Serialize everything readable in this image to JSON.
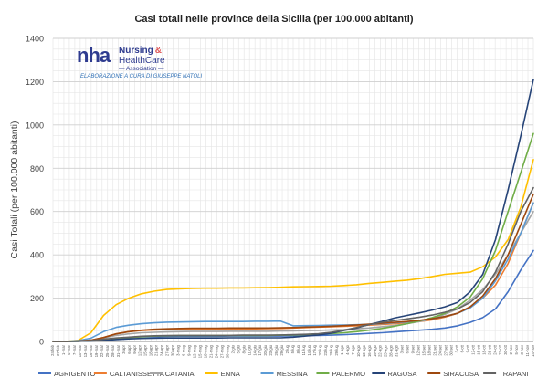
{
  "chart_data": {
    "type": "line",
    "title": "Casi totali nelle province della Sicilia (per 100.000 abitanti)",
    "ylabel": "Casi Totali (per 100.000 abitanti)",
    "xlabel": "",
    "ylim": [
      0,
      1400
    ],
    "yticks": [
      "0",
      "200",
      "400",
      "600",
      "800",
      "1000",
      "1200",
      "1400"
    ],
    "grid": true,
    "legend_position": "bottom",
    "x": [
      "24-feb",
      "2-mar",
      "9-mar",
      "16-mar",
      "23-mar",
      "30-mar",
      "6-apr",
      "13-apr",
      "20-apr",
      "27-apr",
      "4-mag",
      "11-mag",
      "18-mag",
      "25-mag",
      "1-giu",
      "8-giu",
      "15-giu",
      "22-giu",
      "29-giu",
      "6-lug",
      "13-lug",
      "20-lug",
      "27-lug",
      "3-ago",
      "10-ago",
      "17-ago",
      "24-ago",
      "31-ago",
      "7-set",
      "14-set",
      "21-set",
      "28-set",
      "5-ott",
      "12-ott",
      "19-ott",
      "26-ott",
      "2-nov",
      "9-nov",
      "14-nov"
    ],
    "xtick_labels": [
      "24-feb",
      "27-feb",
      "1-mar",
      "4-mar",
      "7-mar",
      "10-mar",
      "13-mar",
      "16-mar",
      "19-mar",
      "22-mar",
      "25-mar",
      "28-mar",
      "31-mar",
      "3-apr",
      "6-apr",
      "9-apr",
      "12-apr",
      "15-apr",
      "18-apr",
      "21-apr",
      "24-apr",
      "27-apr",
      "30-apr",
      "3-mag",
      "6-mag",
      "9-mag",
      "12-mag",
      "15-mag",
      "18-mag",
      "21-mag",
      "24-mag",
      "27-mag",
      "30-mag",
      "2-giu",
      "5-giu",
      "8-giu",
      "11-giu",
      "14-giu",
      "17-giu",
      "20-giu",
      "23-giu",
      "26-giu",
      "29-giu",
      "2-lug",
      "5-lug",
      "8-lug",
      "11-lug",
      "14-lug",
      "17-lug",
      "20-lug",
      "23-lug",
      "26-lug",
      "29-lug",
      "1-ago",
      "4-ago",
      "7-ago",
      "10-ago",
      "13-ago",
      "16-ago",
      "19-ago",
      "22-ago",
      "25-ago",
      "28-ago",
      "31-ago",
      "3-set",
      "6-set",
      "9-set",
      "12-set",
      "15-set",
      "18-set",
      "21-set",
      "24-set",
      "27-set",
      "30-set",
      "3-ott",
      "6-ott",
      "9-ott",
      "12-ott",
      "15-ott",
      "18-ott",
      "21-ott",
      "24-ott",
      "27-ott",
      "30-ott",
      "2-nov",
      "5-nov",
      "8-nov",
      "11-nov",
      "14-nov"
    ],
    "series": [
      {
        "name": "AGRIGENTO",
        "color": "#4472c4",
        "values": [
          0,
          0,
          1,
          3,
          8,
          14,
          18,
          21,
          22,
          23,
          24,
          24,
          24,
          24,
          25,
          25,
          25,
          25,
          25,
          26,
          27,
          28,
          29,
          31,
          34,
          37,
          40,
          44,
          48,
          52,
          56,
          62,
          72,
          88,
          110,
          150,
          230,
          330,
          420
        ]
      },
      {
        "name": "CALTANISSETTA",
        "color": "#ed7d31",
        "values": [
          0,
          0,
          2,
          6,
          18,
          35,
          45,
          50,
          53,
          55,
          56,
          57,
          57,
          57,
          58,
          58,
          58,
          59,
          60,
          62,
          64,
          66,
          68,
          70,
          72,
          75,
          78,
          82,
          86,
          92,
          100,
          112,
          130,
          160,
          200,
          260,
          360,
          500,
          640
        ]
      },
      {
        "name": "CATANIA",
        "color": "#a5a5a5",
        "values": [
          0,
          0,
          2,
          6,
          15,
          28,
          35,
          40,
          42,
          44,
          45,
          46,
          46,
          46,
          47,
          47,
          47,
          47,
          48,
          49,
          50,
          51,
          53,
          55,
          58,
          62,
          68,
          74,
          82,
          92,
          105,
          125,
          150,
          190,
          240,
          310,
          400,
          500,
          600
        ]
      },
      {
        "name": "ENNA",
        "color": "#ffc000",
        "values": [
          0,
          0,
          5,
          40,
          120,
          170,
          200,
          220,
          232,
          240,
          243,
          245,
          246,
          246,
          247,
          247,
          248,
          249,
          250,
          252,
          253,
          254,
          255,
          258,
          262,
          268,
          273,
          278,
          283,
          290,
          300,
          310,
          315,
          320,
          345,
          390,
          470,
          620,
          840
        ]
      },
      {
        "name": "MESSINA",
        "color": "#5b9bd5",
        "values": [
          0,
          0,
          4,
          15,
          45,
          65,
          75,
          82,
          86,
          89,
          90,
          91,
          92,
          92,
          92,
          92,
          93,
          93,
          94,
          72,
          73,
          74,
          75,
          76,
          77,
          79,
          82,
          86,
          90,
          96,
          104,
          115,
          130,
          155,
          200,
          280,
          380,
          500,
          640
        ]
      },
      {
        "name": "PALERMO",
        "color": "#70ad47",
        "values": [
          0,
          0,
          1,
          3,
          8,
          14,
          18,
          22,
          25,
          26,
          27,
          27,
          27,
          27,
          28,
          28,
          28,
          28,
          29,
          30,
          32,
          34,
          36,
          40,
          45,
          52,
          60,
          70,
          82,
          95,
          110,
          130,
          160,
          205,
          290,
          420,
          600,
          780,
          960
        ]
      },
      {
        "name": "RAGUSA",
        "color": "#264478",
        "values": [
          0,
          0,
          1,
          2,
          5,
          9,
          12,
          14,
          15,
          16,
          16,
          16,
          16,
          16,
          17,
          17,
          17,
          17,
          17,
          20,
          25,
          30,
          38,
          50,
          62,
          78,
          92,
          108,
          120,
          132,
          145,
          160,
          180,
          230,
          310,
          470,
          700,
          950,
          1210
        ]
      },
      {
        "name": "SIRACUSA",
        "color": "#9e480e",
        "values": [
          0,
          0,
          2,
          6,
          18,
          35,
          45,
          52,
          56,
          58,
          60,
          61,
          61,
          61,
          62,
          62,
          62,
          62,
          63,
          64,
          66,
          68,
          70,
          73,
          76,
          80,
          84,
          88,
          92,
          98,
          105,
          115,
          130,
          160,
          210,
          290,
          400,
          540,
          680
        ]
      },
      {
        "name": "TRAPANI",
        "color": "#636363",
        "values": [
          0,
          0,
          1,
          4,
          10,
          16,
          20,
          24,
          26,
          27,
          28,
          28,
          28,
          28,
          28,
          29,
          29,
          29,
          30,
          31,
          33,
          36,
          42,
          52,
          64,
          78,
          88,
          96,
          104,
          112,
          122,
          135,
          150,
          180,
          230,
          320,
          450,
          600,
          710
        ]
      }
    ]
  },
  "logo": {
    "mark": "nha",
    "line1": "Nursing",
    "amp": "&",
    "line2": "HealthCare",
    "line3": "— Association —",
    "credit": "ELABORAZIONE A CURA DI GIUSEPPE NATOLI"
  }
}
